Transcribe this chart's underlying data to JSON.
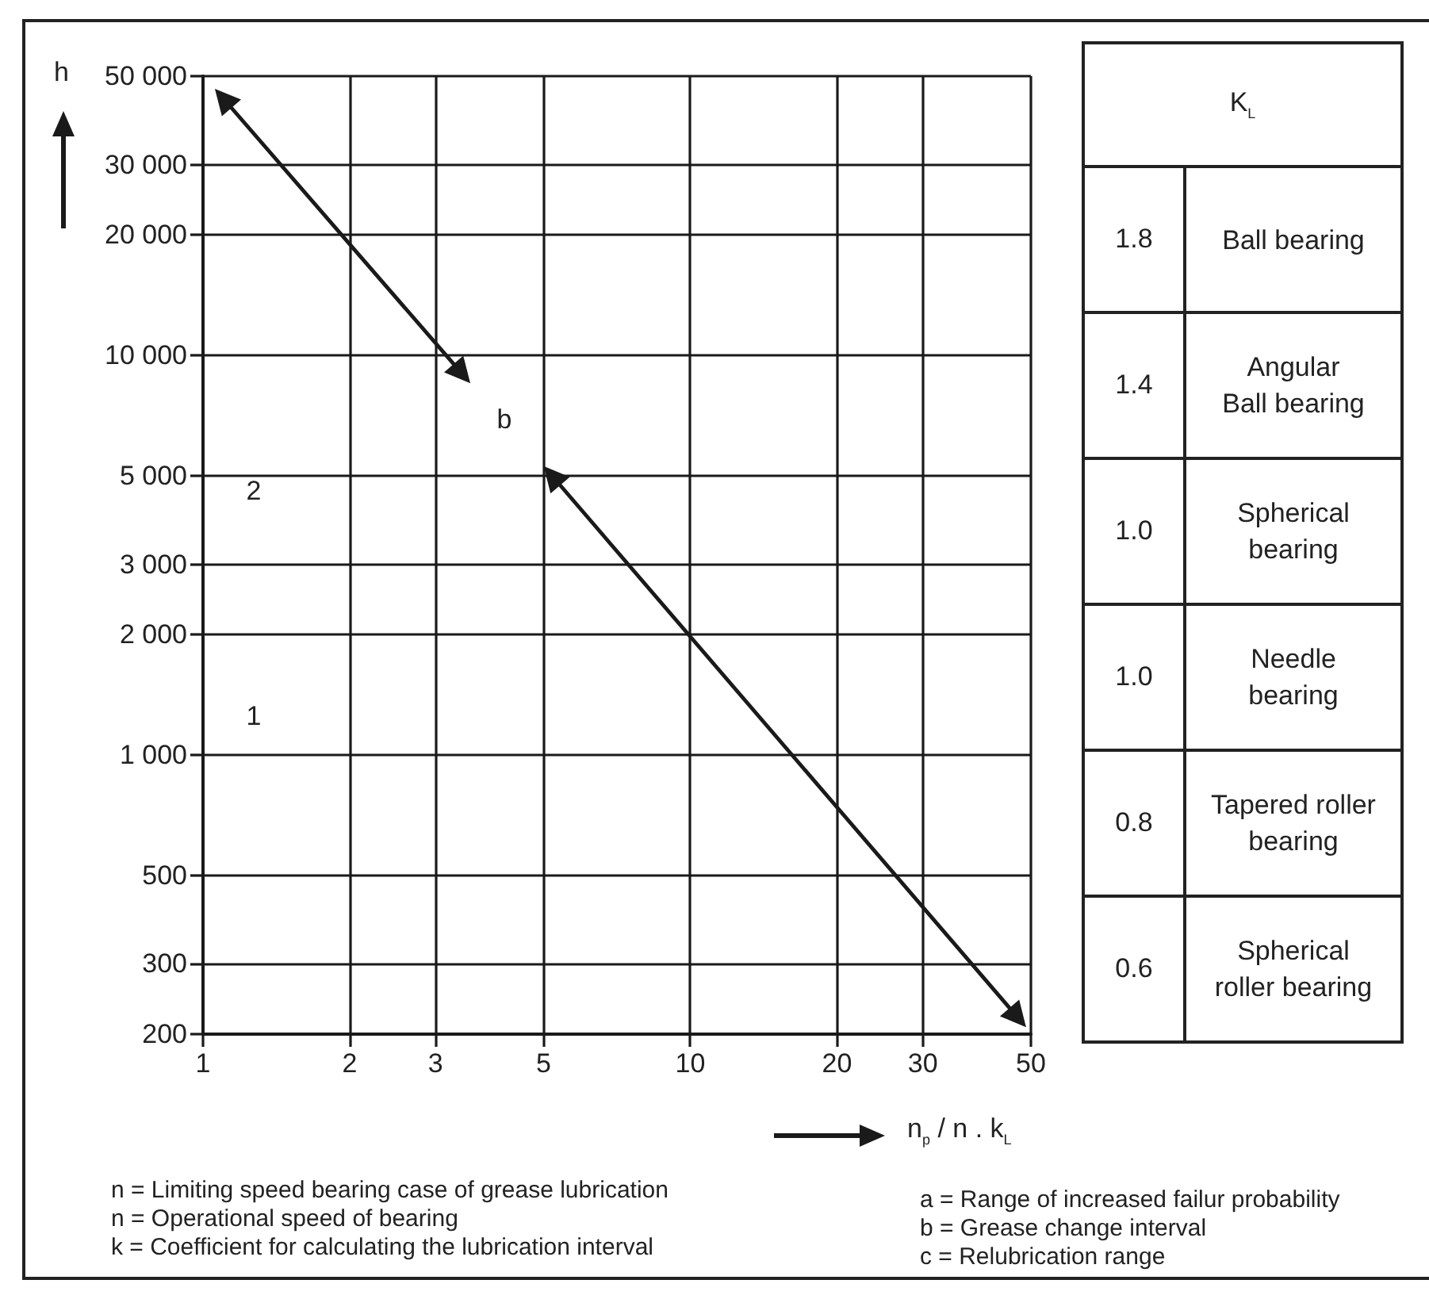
{
  "chart_data": [
    {
      "type": "line",
      "xlabel": "n$_{p}$ / n . k$_{L}$",
      "ylabel": "h",
      "series": [
        {
          "color": "#1a1a1a",
          "x": [
            1.1,
            3.4
          ],
          "values": [
            44000,
            9000
          ]
        },
        {
          "color": "#1a1a1a",
          "x": [
            5.2,
            47
          ],
          "values": [
            5000,
            220
          ]
        }
      ],
      "xlim": [
        1,
        50
      ],
      "xticks": [
        1,
        2,
        3,
        5,
        10,
        20,
        30,
        50
      ],
      "ylim": [
        200,
        50000
      ],
      "yticks": [
        200,
        300,
        500,
        {
          "value": 1000,
          "label": "1 000"
        },
        {
          "value": 2000,
          "label": "2 000"
        },
        {
          "value": 3000,
          "label": "3 000"
        },
        {
          "value": 5000,
          "label": "5 000"
        },
        {
          "value": 10000,
          "label": "10 000"
        },
        {
          "value": 20000,
          "label": "20 000"
        },
        {
          "value": 30000,
          "label": "30 000"
        },
        {
          "value": 50000,
          "label": "50 000"
        }
      ],
      "log": "xy",
      "grid": true,
      "marker": "triangle",
      "line_style": "solid",
      "annotations": [
        "1",
        "2",
        "b",
        "n = Limiting speed bearing case of grease lubrication",
        "n = Operational speed of bearing",
        "k = Coefficient for calculating the lubrication interval",
        "a = Range of increased failur probability",
        "b = Grease change interval",
        "c = Relubrication range"
      ]
    },
    {
      "type": "other",
      "title": "K$_{L}$",
      "categories": [
        "Ball bearing",
        "Angular\nBall bearing",
        "Spherical\nbearing",
        "Needle\nbearing",
        "Tapered roller\nbearing",
        "Spherical\nroller bearing"
      ],
      "values": [
        1.8,
        1.4,
        1.0,
        1.0,
        0.8,
        0.6
      ],
      "value_labels": [
        "1.8",
        "1.4",
        "1.0",
        "1.0",
        "0.8",
        "0.6"
      ]
    }
  ]
}
